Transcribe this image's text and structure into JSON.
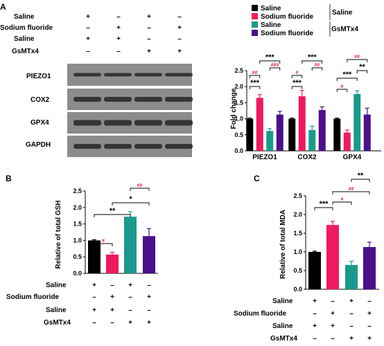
{
  "panels": {
    "A": "A",
    "B": "B",
    "C": "C"
  },
  "treatment_table_A": {
    "rows": [
      {
        "label": "Saline",
        "signs": [
          "+",
          "–",
          "+",
          "–"
        ]
      },
      {
        "label": "Sodium fluoride",
        "signs": [
          "–",
          "+",
          "–",
          "+"
        ]
      },
      {
        "label": "Saline",
        "signs": [
          "+",
          "+",
          "–",
          "–"
        ]
      },
      {
        "label": "GsMTx4",
        "signs": [
          "–",
          "–",
          "+",
          "+"
        ]
      }
    ]
  },
  "treatment_table_B": {
    "rows": [
      {
        "label": "Saline",
        "signs": [
          "+",
          "–",
          "+",
          "–"
        ]
      },
      {
        "label": "Sodium fluoride",
        "signs": [
          "–",
          "+",
          "–",
          "+"
        ]
      },
      {
        "label": "Saline",
        "signs": [
          "+",
          "+",
          "–",
          "–"
        ]
      },
      {
        "label": "GsMTx4",
        "signs": [
          "–",
          "–",
          "+",
          "+"
        ]
      }
    ]
  },
  "treatment_table_C": {
    "rows": [
      {
        "label": "Saline",
        "signs": [
          "+",
          "–",
          "+",
          "–"
        ]
      },
      {
        "label": "Sodium fluoride",
        "signs": [
          "–",
          "+",
          "–",
          "+"
        ]
      },
      {
        "label": "Saline",
        "signs": [
          "+",
          "+",
          "–",
          "–"
        ]
      },
      {
        "label": "GsMTx4",
        "signs": [
          "–",
          "–",
          "+",
          "+"
        ]
      }
    ]
  },
  "blot": {
    "bands": [
      "PIEZO1",
      "COX2",
      "GPX4",
      "GAPDH"
    ]
  },
  "legend": {
    "items": [
      {
        "label": "Saline",
        "color": "#000000"
      },
      {
        "label": "Sodium fluoride",
        "color": "#f0195e"
      },
      {
        "label": "Saline",
        "color": "#1a9a8c"
      },
      {
        "label": "Sodium fluoride",
        "color": "#4b0f8c"
      }
    ],
    "group_labels": [
      "Saline",
      "GsMTx4"
    ]
  },
  "colors": {
    "saline": "#000000",
    "naf": "#f0195e",
    "gsmtx_saline": "#1a9a8c",
    "gsmtx_naf": "#4b0f8c",
    "sig_red": "#e8203a"
  },
  "chart_data": [
    {
      "type": "bar",
      "panel": "A",
      "ylabel": "Fold change",
      "ylim": [
        0,
        2.5
      ],
      "yticks": [
        "0.0",
        "0.5",
        "1.0",
        "1.5",
        "2.0",
        "2.5"
      ],
      "categories": [
        "PIEZO1",
        "COX2",
        "GPX4"
      ],
      "series": [
        {
          "values": [
            1.0,
            1.0,
            1.0
          ],
          "errors": [
            0.02,
            0.02,
            0.02
          ]
        },
        {
          "values": [
            1.65,
            1.7,
            0.57
          ],
          "errors": [
            0.1,
            0.18,
            0.08
          ]
        },
        {
          "values": [
            0.62,
            0.65,
            1.77
          ],
          "errors": [
            0.07,
            0.12,
            0.1
          ]
        },
        {
          "values": [
            1.13,
            1.27,
            1.13
          ],
          "errors": [
            0.1,
            0.1,
            0.2
          ]
        }
      ],
      "annotations": [
        {
          "text": "***",
          "pair": [
            0,
            2
          ]
        },
        {
          "text": "***",
          "pair": [
            1,
            3
          ]
        },
        {
          "text": "##",
          "pair": [
            1,
            3
          ]
        },
        {
          "text": "###",
          "pair": [
            1,
            3
          ]
        }
      ]
    },
    {
      "type": "bar",
      "panel": "B",
      "ylabel": "Relative of total GSH",
      "ylim": [
        0,
        2.5
      ],
      "yticks": [
        "0.0",
        "0.5",
        "1.0",
        "1.5",
        "2.0",
        "2.5"
      ],
      "values": [
        1.0,
        0.57,
        1.72,
        1.13
      ],
      "errors": [
        0.02,
        0.07,
        0.15,
        0.23
      ],
      "annotations": [
        "#",
        "**",
        "*",
        "##"
      ]
    },
    {
      "type": "bar",
      "panel": "C",
      "ylabel": "Relative of total MDA",
      "ylim": [
        0,
        2.5
      ],
      "yticks": [
        "0.0",
        "0.5",
        "1.0",
        "1.5",
        "2.0",
        "2.5"
      ],
      "values": [
        1.0,
        1.72,
        0.65,
        1.13
      ],
      "errors": [
        0.02,
        0.1,
        0.1,
        0.13
      ],
      "annotations": [
        "***",
        "#",
        "##",
        "**"
      ]
    }
  ]
}
